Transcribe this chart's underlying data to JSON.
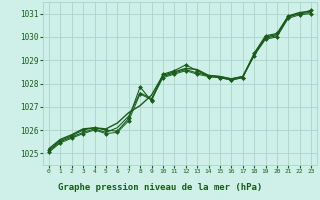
{
  "title": "Graphe pression niveau de la mer (hPa)",
  "bg_color": "#cef0e8",
  "grid_color": "#aad4cc",
  "line_color": "#1a5c1a",
  "text_color": "#1a5c1a",
  "label_bg": "#1a5c1a",
  "xlim": [
    -0.5,
    23.5
  ],
  "ylim": [
    1024.5,
    1031.5
  ],
  "yticks": [
    1025,
    1026,
    1027,
    1028,
    1029,
    1030,
    1031
  ],
  "xticks": [
    0,
    1,
    2,
    3,
    4,
    5,
    6,
    7,
    8,
    9,
    10,
    11,
    12,
    13,
    14,
    15,
    16,
    17,
    18,
    19,
    20,
    21,
    22,
    23
  ],
  "series": [
    {
      "x": [
        0,
        1,
        2,
        3,
        4,
        5,
        6,
        7,
        8,
        9,
        10,
        11,
        12,
        13,
        14,
        15,
        16,
        17,
        18,
        19,
        20,
        21,
        22,
        23
      ],
      "y": [
        1025.2,
        1025.6,
        1025.8,
        1026.05,
        1026.1,
        1026.05,
        1026.3,
        1026.75,
        1027.05,
        1027.5,
        1028.35,
        1028.5,
        1028.65,
        1028.6,
        1028.35,
        1028.3,
        1028.2,
        1028.3,
        1029.25,
        1030.0,
        1030.1,
        1030.9,
        1031.05,
        1031.1
      ],
      "marker": null,
      "lw": 1.0
    },
    {
      "x": [
        0,
        1,
        2,
        3,
        4,
        5,
        6,
        7,
        8,
        9,
        10,
        11,
        12,
        13,
        14,
        15,
        16,
        17,
        18,
        19,
        20,
        21,
        22,
        23
      ],
      "y": [
        1025.15,
        1025.55,
        1025.75,
        1026.0,
        1026.1,
        1026.0,
        1025.95,
        1026.5,
        1027.85,
        1027.25,
        1028.4,
        1028.55,
        1028.8,
        1028.55,
        1028.3,
        1028.25,
        1028.15,
        1028.25,
        1029.3,
        1030.05,
        1030.15,
        1030.9,
        1031.0,
        1031.15
      ],
      "marker": "D",
      "lw": 0.8,
      "ms": 2.0
    },
    {
      "x": [
        0,
        1,
        2,
        3,
        4,
        5,
        6,
        7,
        8,
        9,
        10,
        11,
        12,
        13,
        14,
        15,
        16,
        17,
        18,
        19,
        20,
        21,
        22,
        23
      ],
      "y": [
        1025.1,
        1025.5,
        1025.7,
        1025.9,
        1026.05,
        1025.9,
        1026.1,
        1026.6,
        1027.6,
        1027.35,
        1028.3,
        1028.45,
        1028.6,
        1028.45,
        1028.35,
        1028.3,
        1028.2,
        1028.3,
        1029.2,
        1029.95,
        1030.05,
        1030.85,
        1031.0,
        1031.05
      ],
      "marker": null,
      "lw": 0.8,
      "ms": 0
    },
    {
      "x": [
        0,
        1,
        2,
        3,
        4,
        5,
        6,
        7,
        8,
        9,
        10,
        11,
        12,
        13,
        14,
        15,
        16,
        17,
        18,
        19,
        20,
        21,
        22,
        23
      ],
      "y": [
        1025.05,
        1025.45,
        1025.65,
        1025.85,
        1026.0,
        1025.85,
        1025.9,
        1026.4,
        1027.55,
        1027.3,
        1028.25,
        1028.4,
        1028.55,
        1028.4,
        1028.3,
        1028.25,
        1028.15,
        1028.25,
        1029.2,
        1029.9,
        1030.0,
        1030.8,
        1030.95,
        1031.0
      ],
      "marker": "D",
      "lw": 0.7,
      "ms": 2.0
    }
  ]
}
